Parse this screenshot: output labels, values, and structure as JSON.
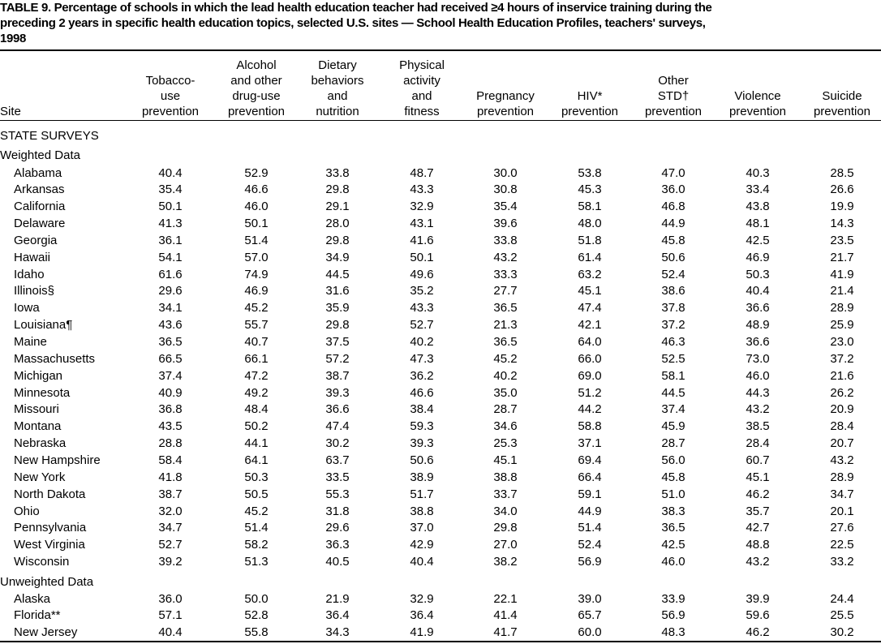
{
  "title_lines": [
    "TABLE 9. Percentage of schools in which the lead health education teacher had received ≥4 hours of inservice training during the",
    "preceding 2 years in specific health education topics, selected U.S. sites — School Health Education Profiles, teachers' surveys,",
    "1998"
  ],
  "columns": [
    {
      "lines": [
        "Site"
      ]
    },
    {
      "lines": [
        "Tobacco-",
        "use",
        "prevention"
      ]
    },
    {
      "lines": [
        "Alcohol",
        "and other",
        "drug-use",
        "prevention"
      ]
    },
    {
      "lines": [
        "Dietary",
        "behaviors",
        "and",
        "nutrition"
      ]
    },
    {
      "lines": [
        "Physical",
        "activity",
        "and",
        "fitness"
      ]
    },
    {
      "lines": [
        "Pregnancy",
        "prevention"
      ]
    },
    {
      "lines": [
        "HIV*",
        "prevention"
      ]
    },
    {
      "lines": [
        "Other",
        "STD†",
        "prevention"
      ]
    },
    {
      "lines": [
        "Violence",
        "prevention"
      ]
    },
    {
      "lines": [
        "Suicide",
        "prevention"
      ]
    }
  ],
  "section": {
    "label": "STATE SURVEYS",
    "groups": [
      {
        "label": "Weighted Data",
        "rows": [
          {
            "site": "Alabama",
            "values": [
              "40.4",
              "52.9",
              "33.8",
              "48.7",
              "30.0",
              "53.8",
              "47.0",
              "40.3",
              "28.5"
            ]
          },
          {
            "site": "Arkansas",
            "values": [
              "35.4",
              "46.6",
              "29.8",
              "43.3",
              "30.8",
              "45.3",
              "36.0",
              "33.4",
              "26.6"
            ]
          },
          {
            "site": "California",
            "values": [
              "50.1",
              "46.0",
              "29.1",
              "32.9",
              "35.4",
              "58.1",
              "46.8",
              "43.8",
              "19.9"
            ]
          },
          {
            "site": "Delaware",
            "values": [
              "41.3",
              "50.1",
              "28.0",
              "43.1",
              "39.6",
              "48.0",
              "44.9",
              "48.1",
              "14.3"
            ]
          },
          {
            "site": "Georgia",
            "values": [
              "36.1",
              "51.4",
              "29.8",
              "41.6",
              "33.8",
              "51.8",
              "45.8",
              "42.5",
              "23.5"
            ]
          },
          {
            "site": "Hawaii",
            "values": [
              "54.1",
              "57.0",
              "34.9",
              "50.1",
              "43.2",
              "61.4",
              "50.6",
              "46.9",
              "21.7"
            ]
          },
          {
            "site": "Idaho",
            "values": [
              "61.6",
              "74.9",
              "44.5",
              "49.6",
              "33.3",
              "63.2",
              "52.4",
              "50.3",
              "41.9"
            ]
          },
          {
            "site": "Illinois§",
            "values": [
              "29.6",
              "46.9",
              "31.6",
              "35.2",
              "27.7",
              "45.1",
              "38.6",
              "40.4",
              "21.4"
            ]
          },
          {
            "site": "Iowa",
            "values": [
              "34.1",
              "45.2",
              "35.9",
              "43.3",
              "36.5",
              "47.4",
              "37.8",
              "36.6",
              "28.9"
            ]
          },
          {
            "site": "Louisiana¶",
            "values": [
              "43.6",
              "55.7",
              "29.8",
              "52.7",
              "21.3",
              "42.1",
              "37.2",
              "48.9",
              "25.9"
            ]
          },
          {
            "site": "Maine",
            "values": [
              "36.5",
              "40.7",
              "37.5",
              "40.2",
              "36.5",
              "64.0",
              "46.3",
              "36.6",
              "23.0"
            ]
          },
          {
            "site": "Massachusetts",
            "values": [
              "66.5",
              "66.1",
              "57.2",
              "47.3",
              "45.2",
              "66.0",
              "52.5",
              "73.0",
              "37.2"
            ]
          },
          {
            "site": "Michigan",
            "values": [
              "37.4",
              "47.2",
              "38.7",
              "36.2",
              "40.2",
              "69.0",
              "58.1",
              "46.0",
              "21.6"
            ]
          },
          {
            "site": "Minnesota",
            "values": [
              "40.9",
              "49.2",
              "39.3",
              "46.6",
              "35.0",
              "51.2",
              "44.5",
              "44.3",
              "26.2"
            ]
          },
          {
            "site": "Missouri",
            "values": [
              "36.8",
              "48.4",
              "36.6",
              "38.4",
              "28.7",
              "44.2",
              "37.4",
              "43.2",
              "20.9"
            ]
          },
          {
            "site": "Montana",
            "values": [
              "43.5",
              "50.2",
              "47.4",
              "59.3",
              "34.6",
              "58.8",
              "45.9",
              "38.5",
              "28.4"
            ]
          },
          {
            "site": "Nebraska",
            "values": [
              "28.8",
              "44.1",
              "30.2",
              "39.3",
              "25.3",
              "37.1",
              "28.7",
              "28.4",
              "20.7"
            ]
          },
          {
            "site": "New Hampshire",
            "values": [
              "58.4",
              "64.1",
              "63.7",
              "50.6",
              "45.1",
              "69.4",
              "56.0",
              "60.7",
              "43.2"
            ]
          },
          {
            "site": "New York",
            "values": [
              "41.8",
              "50.3",
              "33.5",
              "38.9",
              "38.8",
              "66.4",
              "45.8",
              "45.1",
              "28.9"
            ]
          },
          {
            "site": "North Dakota",
            "values": [
              "38.7",
              "50.5",
              "55.3",
              "51.7",
              "33.7",
              "59.1",
              "51.0",
              "46.2",
              "34.7"
            ]
          },
          {
            "site": "Ohio",
            "values": [
              "32.0",
              "45.2",
              "31.8",
              "38.8",
              "34.0",
              "44.9",
              "38.3",
              "35.7",
              "20.1"
            ]
          },
          {
            "site": "Pennsylvania",
            "values": [
              "34.7",
              "51.4",
              "29.6",
              "37.0",
              "29.8",
              "51.4",
              "36.5",
              "42.7",
              "27.6"
            ]
          },
          {
            "site": "West Virginia",
            "values": [
              "52.7",
              "58.2",
              "36.3",
              "42.9",
              "27.0",
              "52.4",
              "42.5",
              "48.8",
              "22.5"
            ]
          },
          {
            "site": "Wisconsin",
            "values": [
              "39.2",
              "51.3",
              "40.5",
              "40.4",
              "38.2",
              "56.9",
              "46.0",
              "43.2",
              "33.2"
            ]
          }
        ]
      },
      {
        "label": "Unweighted Data",
        "rows": [
          {
            "site": "Alaska",
            "values": [
              "36.0",
              "50.0",
              "21.9",
              "32.9",
              "22.1",
              "39.0",
              "33.9",
              "39.9",
              "24.4"
            ]
          },
          {
            "site": "Florida**",
            "values": [
              "57.1",
              "52.8",
              "36.4",
              "36.4",
              "41.4",
              "65.7",
              "56.9",
              "59.6",
              "25.5"
            ]
          },
          {
            "site": "New Jersey",
            "values": [
              "40.4",
              "55.8",
              "34.3",
              "41.9",
              "41.7",
              "60.0",
              "48.3",
              "46.2",
              "30.2"
            ]
          }
        ]
      }
    ]
  }
}
